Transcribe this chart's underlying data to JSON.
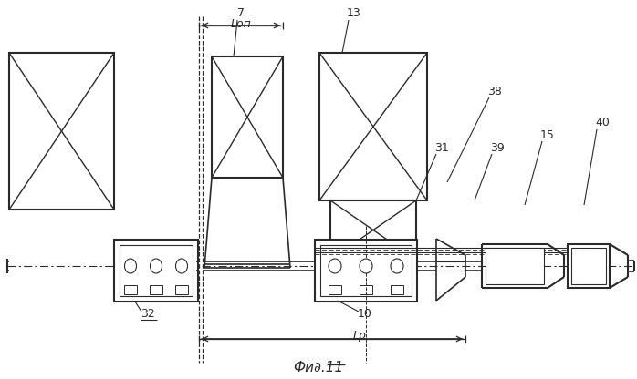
{
  "fig_width": 6.98,
  "fig_height": 4.16,
  "dpi": 100,
  "bg_color": "#ffffff",
  "line_color": "#2a2a2a",
  "title": "Фи∂.11",
  "labels": {
    "Lon": "Lоп",
    "Lr": "Lр",
    "7": "7",
    "13": "13",
    "38": "38",
    "31": "31",
    "39": "39",
    "15": "15",
    "40": "40",
    "32": "32",
    "10": "10"
  }
}
